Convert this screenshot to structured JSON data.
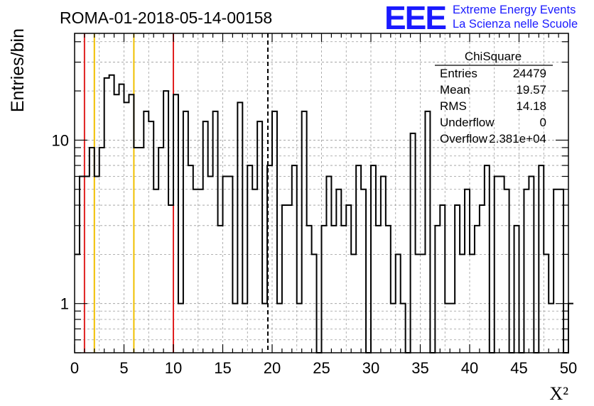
{
  "chart_data": {
    "type": "histogram",
    "title": "ROMA-01-2018-05-14-00158",
    "xlabel": "X²",
    "ylabel": "Entries/bin",
    "xlim": [
      0,
      50
    ],
    "ylim": [
      0.5,
      45
    ],
    "yscale": "log",
    "grid": true,
    "bin_width": 0.5,
    "bin_start": 0,
    "x_ticks": [
      "0",
      "5",
      "10",
      "15",
      "20",
      "25",
      "30",
      "35",
      "40",
      "45",
      "50"
    ],
    "y_ticks": [
      "1",
      "10"
    ],
    "values": [
      2,
      6,
      6,
      9,
      6,
      9,
      24,
      25,
      19,
      22,
      17,
      19,
      9,
      9,
      15,
      13,
      5,
      9,
      20,
      4,
      19,
      1,
      15,
      7,
      5,
      5,
      13,
      6,
      15,
      3,
      6,
      6,
      1,
      17,
      1,
      7,
      5,
      13,
      1,
      7,
      15,
      1,
      4,
      4,
      7,
      1,
      15,
      3,
      2,
      0.4,
      3,
      6,
      3,
      5,
      3,
      4,
      2,
      7,
      5,
      0.4,
      7,
      3,
      6,
      3,
      1,
      2,
      1,
      0.4,
      11,
      2,
      2,
      15,
      0.4,
      3,
      4,
      1,
      1,
      4,
      2,
      5,
      2,
      3,
      4,
      7,
      0.4,
      6,
      6,
      5,
      0.4,
      3,
      0.4,
      5,
      6,
      0.4,
      7,
      2,
      1,
      5,
      5,
      0.4,
      1
    ],
    "reference_lines": [
      {
        "x": 1,
        "color": "#e02020",
        "style": "solid"
      },
      {
        "x": 2,
        "color": "#f0c000",
        "style": "solid"
      },
      {
        "x": 6,
        "color": "#f0c000",
        "style": "solid"
      },
      {
        "x": 10,
        "color": "#e02020",
        "style": "solid"
      },
      {
        "x": 19.57,
        "color": "#000000",
        "style": "dashed"
      }
    ],
    "stats_box": {
      "title": "ChiSquare",
      "rows": [
        {
          "label": "Entries",
          "value": "24479"
        },
        {
          "label": "Mean",
          "value": "19.57"
        },
        {
          "label": "RMS",
          "value": "14.18"
        },
        {
          "label": "Underflow",
          "value": "0"
        },
        {
          "label": "Overflow",
          "value": "2.381e+04"
        }
      ]
    }
  },
  "logo": {
    "text": "EEE",
    "line1": "Extreme Energy Events",
    "line2": "La Scienza nelle Scuole",
    "color": "#1a1aff"
  }
}
